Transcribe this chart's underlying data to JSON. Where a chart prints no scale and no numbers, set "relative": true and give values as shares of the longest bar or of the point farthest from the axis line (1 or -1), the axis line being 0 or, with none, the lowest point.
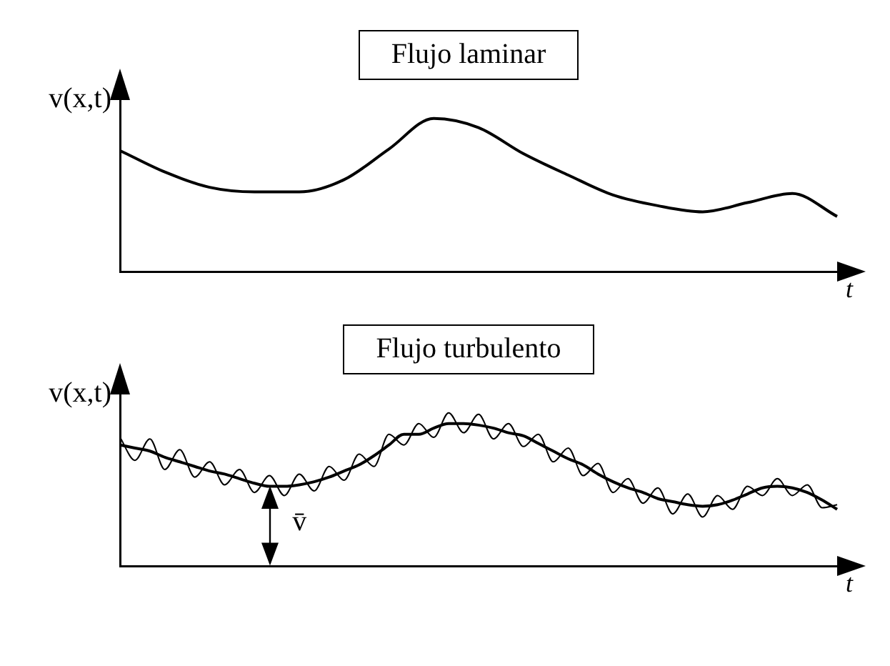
{
  "chart_data": [
    {
      "type": "line",
      "title": "Flujo laminar",
      "xlabel": "t",
      "ylabel": "v(x,t)",
      "relative": true,
      "categories": [
        null,
        null,
        null,
        null,
        null,
        null,
        null,
        null,
        null,
        null,
        null,
        null,
        null,
        null,
        null,
        null,
        null
      ],
      "series": [
        {
          "color": "#000000",
          "values": [
            0.79,
            0.65,
            0.55,
            0.52,
            0.52,
            0.6,
            0.8,
            1.0,
            0.94,
            0.77,
            0.63,
            0.5,
            0.43,
            0.39,
            0.45,
            0.51,
            0.36
          ]
        }
      ]
    },
    {
      "type": "line",
      "title": "Flujo turbulento",
      "xlabel": "t",
      "ylabel": "v(x,t)",
      "relative": true,
      "annotations": [
        "v̄"
      ],
      "categories": [
        null,
        null,
        null,
        null,
        null,
        null,
        null,
        null,
        null,
        null,
        null,
        null,
        null,
        null,
        null,
        null,
        null,
        null,
        null,
        null,
        null,
        null,
        null,
        null,
        null,
        null,
        null,
        null,
        null,
        null,
        null,
        null,
        null,
        null,
        null,
        null,
        null,
        null,
        null,
        null,
        null,
        null,
        null,
        null,
        null,
        null,
        null,
        null,
        null
      ],
      "series": [
        {
          "color": "#000000",
          "values": [
            0.79,
            0.77,
            0.75,
            0.71,
            0.68,
            0.65,
            0.62,
            0.6,
            0.57,
            0.54,
            0.52,
            0.52,
            0.53,
            0.55,
            0.58,
            0.62,
            0.66,
            0.72,
            0.79,
            0.86,
            0.86,
            0.9,
            0.93,
            0.93,
            0.92,
            0.9,
            0.87,
            0.85,
            0.8,
            0.75,
            0.7,
            0.66,
            0.6,
            0.55,
            0.51,
            0.48,
            0.44,
            0.42,
            0.4,
            0.39,
            0.4,
            0.43,
            0.47,
            0.51,
            0.52,
            0.51,
            0.48,
            0.43,
            0.37
          ]
        },
        {
          "color": "#000000",
          "values": [
            0.84,
            0.69,
            0.83,
            0.63,
            0.76,
            0.58,
            0.68,
            0.53,
            0.63,
            0.48,
            0.59,
            0.46,
            0.6,
            0.49,
            0.65,
            0.56,
            0.73,
            0.65,
            0.86,
            0.79,
            0.93,
            0.84,
            1.0,
            0.87,
            0.99,
            0.83,
            0.93,
            0.78,
            0.86,
            0.68,
            0.77,
            0.59,
            0.67,
            0.48,
            0.57,
            0.41,
            0.51,
            0.34,
            0.47,
            0.32,
            0.46,
            0.37,
            0.52,
            0.46,
            0.57,
            0.46,
            0.53,
            0.38,
            0.4
          ]
        }
      ]
    }
  ]
}
